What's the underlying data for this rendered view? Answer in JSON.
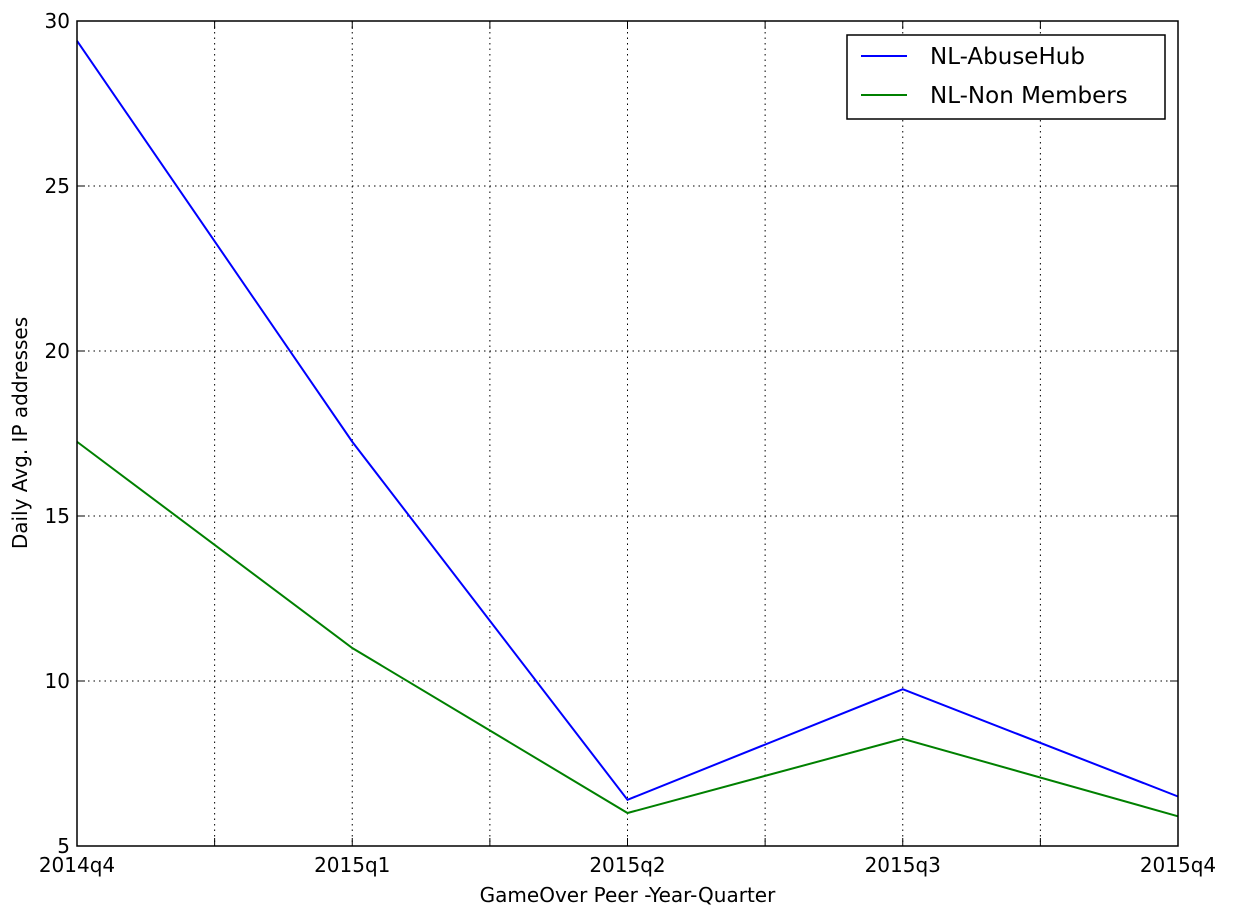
{
  "chart_data": {
    "type": "line",
    "title": "",
    "xlabel": "GameOver Peer -Year-Quarter",
    "ylabel": "Daily Avg. IP addresses",
    "x": [
      "2014q4",
      "2015q1",
      "2015q2",
      "2015q3",
      "2015q4"
    ],
    "xlim": [
      0,
      4
    ],
    "ylim": [
      5,
      30
    ],
    "yticks": [
      5,
      10,
      15,
      20,
      25,
      30
    ],
    "grid": true,
    "legend": "top-right",
    "series": [
      {
        "name": "NL-AbuseHub",
        "color": "#0000ff",
        "values": [
          29.4,
          17.25,
          6.4,
          9.75,
          6.5
        ]
      },
      {
        "name": "NL-Non Members",
        "color": "#008000",
        "values": [
          17.25,
          11.0,
          6.0,
          8.25,
          5.9
        ]
      }
    ]
  }
}
